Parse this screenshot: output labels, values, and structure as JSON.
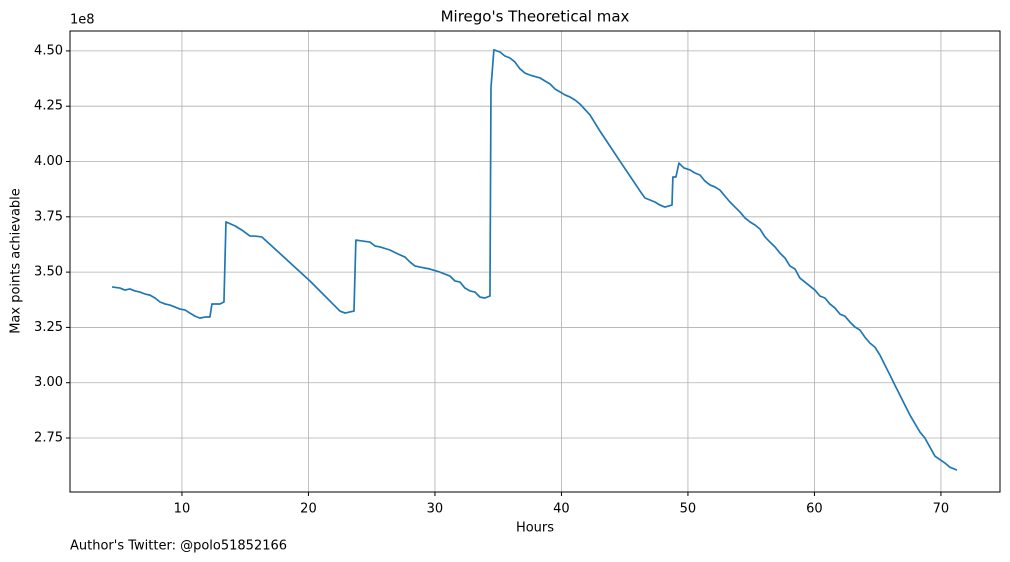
{
  "chart_data": {
    "type": "line",
    "title": "Mirego's Theoretical max",
    "x_label": "Hours",
    "y_label": "Max points achievable",
    "y_offset_label": "1e8",
    "footnote": "Author's Twitter: @polo51852166",
    "x": [
      4.47,
      5.1,
      5.49,
      5.89,
      6.28,
      6.68,
      7.08,
      7.47,
      7.87,
      8.26,
      8.66,
      9.05,
      9.45,
      9.84,
      10.24,
      10.63,
      11.03,
      11.42,
      11.82,
      12.21,
      12.37,
      13.0,
      13.32,
      13.48,
      14.19,
      14.74,
      15.38,
      15.77,
      16.32,
      20.12,
      22.49,
      22.89,
      23.28,
      23.6,
      23.75,
      24.22,
      24.86,
      25.26,
      25.65,
      26.44,
      27.08,
      27.63,
      28.02,
      28.42,
      28.81,
      29.6,
      30.39,
      31.19,
      31.58,
      31.98,
      32.37,
      32.77,
      33.16,
      33.56,
      33.95,
      34.35,
      34.43,
      34.66,
      35.14,
      35.53,
      35.93,
      36.32,
      36.72,
      37.11,
      37.51,
      38.3,
      38.7,
      39.09,
      39.49,
      39.88,
      40.28,
      40.67,
      41.07,
      41.46,
      42.25,
      43.04,
      43.83,
      44.62,
      45.41,
      46.21,
      46.6,
      47.0,
      47.39,
      47.79,
      48.18,
      48.74,
      48.81,
      49.05,
      49.29,
      49.68,
      50.16,
      50.55,
      50.95,
      51.34,
      51.74,
      52.13,
      52.53,
      52.92,
      53.32,
      53.72,
      54.11,
      54.51,
      54.9,
      55.3,
      55.69,
      56.09,
      56.48,
      56.88,
      57.27,
      57.67,
      58.06,
      58.46,
      58.85,
      59.25,
      59.64,
      60.04,
      60.43,
      60.83,
      61.22,
      61.62,
      62.02,
      62.41,
      62.81,
      63.2,
      63.6,
      63.99,
      64.39,
      64.78,
      65.18,
      65.57,
      65.97,
      66.36,
      66.76,
      67.15,
      67.55,
      68.34,
      68.73,
      69.13,
      69.53,
      70.32,
      70.71,
      71.27
    ],
    "series": [
      {
        "color": "#1f77b4",
        "values": [
          3.433,
          3.428,
          3.419,
          3.424,
          3.415,
          3.41,
          3.401,
          3.396,
          3.383,
          3.365,
          3.356,
          3.351,
          3.342,
          3.333,
          3.329,
          3.315,
          3.301,
          3.292,
          3.297,
          3.297,
          3.356,
          3.356,
          3.365,
          3.727,
          3.709,
          3.69,
          3.663,
          3.663,
          3.659,
          3.46,
          3.324,
          3.315,
          3.32,
          3.324,
          3.645,
          3.641,
          3.636,
          3.618,
          3.614,
          3.6,
          3.582,
          3.568,
          3.546,
          3.528,
          3.523,
          3.514,
          3.5,
          3.482,
          3.46,
          3.455,
          3.428,
          3.415,
          3.41,
          3.387,
          3.383,
          3.392,
          4.333,
          4.505,
          4.495,
          4.477,
          4.468,
          4.45,
          4.419,
          4.4,
          4.391,
          4.378,
          4.364,
          4.351,
          4.328,
          4.315,
          4.301,
          4.292,
          4.278,
          4.26,
          4.211,
          4.138,
          4.07,
          4.002,
          3.935,
          3.867,
          3.835,
          3.826,
          3.817,
          3.803,
          3.794,
          3.803,
          3.93,
          3.93,
          3.993,
          3.971,
          3.962,
          3.948,
          3.939,
          3.912,
          3.894,
          3.885,
          3.871,
          3.844,
          3.817,
          3.794,
          3.772,
          3.745,
          3.727,
          3.713,
          3.695,
          3.659,
          3.636,
          3.614,
          3.586,
          3.564,
          3.528,
          3.514,
          3.473,
          3.455,
          3.437,
          3.419,
          3.392,
          3.383,
          3.356,
          3.338,
          3.31,
          3.301,
          3.274,
          3.252,
          3.238,
          3.206,
          3.179,
          3.161,
          3.125,
          3.08,
          3.035,
          2.989,
          2.944,
          2.899,
          2.854,
          2.777,
          2.75,
          2.709,
          2.668,
          2.637,
          2.618,
          2.605
        ]
      }
    ],
    "xlim": [
      1.15,
      74.67
    ],
    "ylim": [
      2.506,
      4.59
    ],
    "xticks": [
      10,
      20,
      30,
      40,
      50,
      60,
      70
    ],
    "yticks": [
      {
        "value": 2.75,
        "label": "2.75"
      },
      {
        "value": 3,
        "label": "3.00"
      },
      {
        "value": 3.25,
        "label": "3.25"
      },
      {
        "value": 3.5,
        "label": "3.50"
      },
      {
        "value": 3.75,
        "label": "3.75"
      },
      {
        "value": 4,
        "label": "4.00"
      },
      {
        "value": 4.25,
        "label": "4.25"
      },
      {
        "value": 4.5,
        "label": "4.50"
      }
    ],
    "grid": true
  }
}
